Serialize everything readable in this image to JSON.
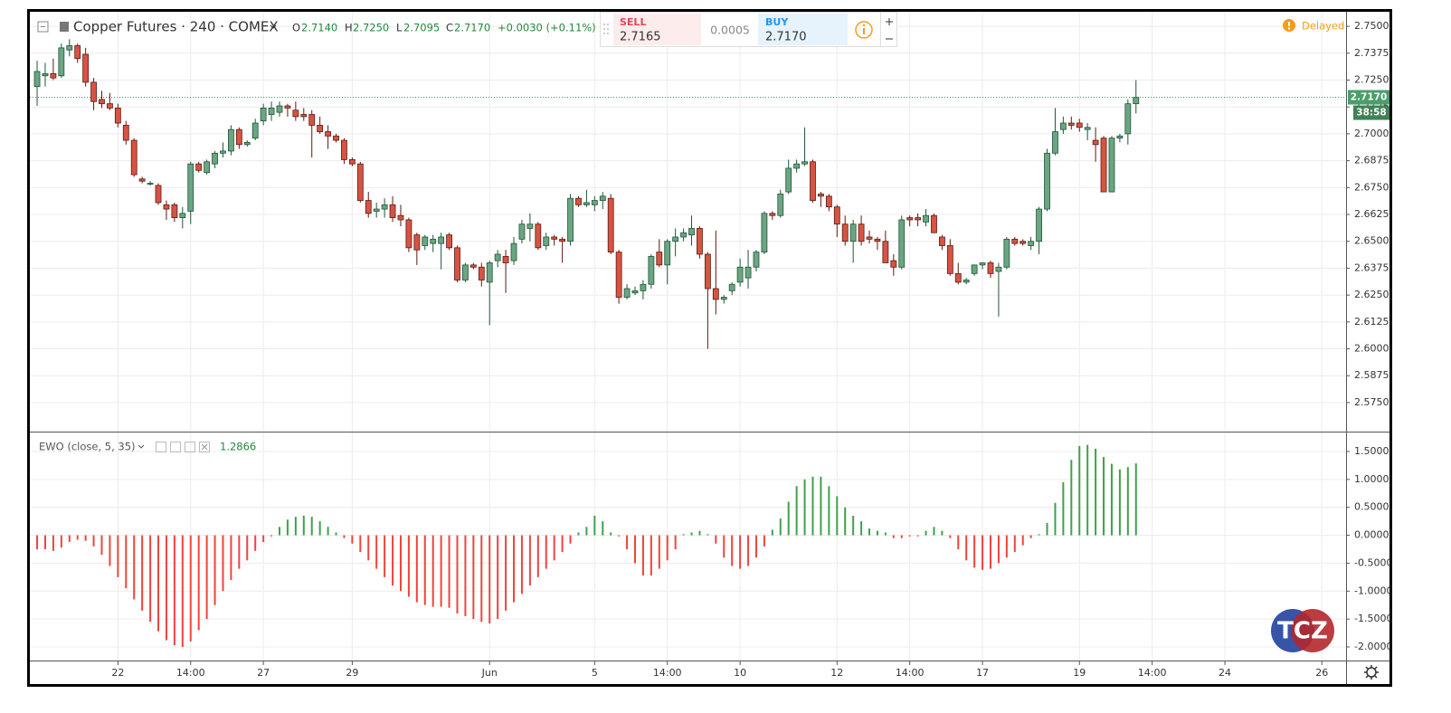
{
  "toolbar": {
    "symbol": "Copper Futures · 240 · COMEX",
    "o_label": "O",
    "o": "2.7140",
    "h_label": "H",
    "h": "2.7250",
    "l_label": "L",
    "l": "2.7095",
    "c_label": "C",
    "c": "2.7170",
    "change": "+0.0030 (+0.11%)",
    "sell_label": "SELL",
    "sell": "2.7165",
    "spread": "0.0005",
    "buy_label": "BUY",
    "buy": "2.7170",
    "status": "Delayed"
  },
  "chart_data": [
    {
      "type": "candlestick",
      "up_color": "#6ba583",
      "down_color": "#d75442",
      "up_border": "#225437",
      "down_border": "#5b1a13",
      "last_label": "2.7170",
      "countdown": "38:58",
      "xlim": [
        -0.9,
        162.0
      ],
      "ylim": [
        2.5615,
        2.7572
      ],
      "yticks": [
        {
          "value": 2.575,
          "label": "2.5750"
        },
        {
          "value": 2.5875,
          "label": "2.5875"
        },
        {
          "value": 2.6,
          "label": "2.6000"
        },
        {
          "value": 2.6125,
          "label": "2.6125"
        },
        {
          "value": 2.625,
          "label": "2.6250"
        },
        {
          "value": 2.6375,
          "label": "2.6375"
        },
        {
          "value": 2.65,
          "label": "2.6500"
        },
        {
          "value": 2.6625,
          "label": "2.6625"
        },
        {
          "value": 2.675,
          "label": "2.6750"
        },
        {
          "value": 2.6875,
          "label": "2.6875"
        },
        {
          "value": 2.7,
          "label": "2.7000"
        },
        {
          "value": 2.7125,
          "label": "2.7125"
        },
        {
          "value": 2.725,
          "label": "2.7250"
        },
        {
          "value": 2.7375,
          "label": "2.7375"
        },
        {
          "value": 2.75,
          "label": "2.7500"
        }
      ],
      "open": [
        2.722,
        2.727,
        2.728,
        2.727,
        2.739,
        2.741,
        2.737,
        2.724,
        2.716,
        2.714,
        2.712,
        2.704,
        2.697,
        2.679,
        2.677,
        2.676,
        2.667,
        2.667,
        2.661,
        2.664,
        2.686,
        2.682,
        2.686,
        2.691,
        2.692,
        2.702,
        2.695,
        2.698,
        2.706,
        2.709,
        2.71,
        2.713,
        2.711,
        2.709,
        2.709,
        2.704,
        2.701,
        2.699,
        2.697,
        2.688,
        2.686,
        2.669,
        2.664,
        2.665,
        2.667,
        2.662,
        2.66,
        2.653,
        2.648,
        2.649,
        2.649,
        2.653,
        2.647,
        2.632,
        2.639,
        2.638,
        2.631,
        2.641,
        2.643,
        2.641,
        2.651,
        2.656,
        2.658,
        2.648,
        2.652,
        2.651,
        2.65,
        2.67,
        2.667,
        2.667,
        2.669,
        2.67,
        2.645,
        2.624,
        2.626,
        2.627,
        2.63,
        2.645,
        2.639,
        2.65,
        2.652,
        2.653,
        2.656,
        2.644,
        2.628,
        2.623,
        2.627,
        2.631,
        2.633,
        2.638,
        2.645,
        2.663,
        2.662,
        2.673,
        2.684,
        2.686,
        2.687,
        2.672,
        2.671,
        2.666,
        2.658,
        2.65,
        2.658,
        2.652,
        2.651,
        2.65,
        2.641,
        2.638,
        2.661,
        2.661,
        2.659,
        2.662,
        2.652,
        2.648,
        2.635,
        2.631,
        2.635,
        2.639,
        2.64,
        2.636,
        2.638,
        2.651,
        2.65,
        2.648,
        2.65,
        2.665,
        2.691,
        2.702,
        2.705,
        2.705,
        2.702,
        2.697,
        2.698,
        2.673,
        2.698,
        2.7,
        2.714
      ],
      "high": [
        2.734,
        2.733,
        2.735,
        2.742,
        2.744,
        2.742,
        2.74,
        2.726,
        2.72,
        2.719,
        2.714,
        2.706,
        2.698,
        2.68,
        2.678,
        2.677,
        2.669,
        2.668,
        2.666,
        2.687,
        2.687,
        2.688,
        2.692,
        2.696,
        2.704,
        2.703,
        2.697,
        2.707,
        2.714,
        2.715,
        2.715,
        2.714,
        2.715,
        2.712,
        2.711,
        2.708,
        2.704,
        2.7,
        2.698,
        2.689,
        2.687,
        2.673,
        2.668,
        2.67,
        2.671,
        2.667,
        2.661,
        2.654,
        2.653,
        2.653,
        2.654,
        2.654,
        2.648,
        2.64,
        2.64,
        2.64,
        2.641,
        2.646,
        2.646,
        2.652,
        2.66,
        2.663,
        2.659,
        2.654,
        2.653,
        2.652,
        2.672,
        2.671,
        2.674,
        2.671,
        2.673,
        2.672,
        2.646,
        2.63,
        2.629,
        2.632,
        2.644,
        2.651,
        2.651,
        2.656,
        2.656,
        2.662,
        2.657,
        2.645,
        2.655,
        2.625,
        2.631,
        2.642,
        2.646,
        2.646,
        2.664,
        2.664,
        2.674,
        2.688,
        2.688,
        2.703,
        2.688,
        2.673,
        2.672,
        2.667,
        2.662,
        2.66,
        2.662,
        2.655,
        2.652,
        2.655,
        2.644,
        2.662,
        2.662,
        2.663,
        2.665,
        2.663,
        2.653,
        2.651,
        2.64,
        2.633,
        2.639,
        2.64,
        2.641,
        2.64,
        2.652,
        2.652,
        2.651,
        2.652,
        2.666,
        2.693,
        2.712,
        2.708,
        2.708,
        2.707,
        2.705,
        2.703,
        2.699,
        2.699,
        2.7,
        2.716,
        2.725
      ],
      "low": [
        2.713,
        2.722,
        2.725,
        2.726,
        2.736,
        2.733,
        2.722,
        2.711,
        2.712,
        2.711,
        2.703,
        2.695,
        2.68,
        2.677,
        2.676,
        2.667,
        2.66,
        2.659,
        2.656,
        2.658,
        2.682,
        2.681,
        2.684,
        2.689,
        2.69,
        2.693,
        2.694,
        2.697,
        2.704,
        2.706,
        2.708,
        2.708,
        2.706,
        2.706,
        2.689,
        2.7,
        2.693,
        2.696,
        2.686,
        2.685,
        2.668,
        2.661,
        2.661,
        2.661,
        2.659,
        2.657,
        2.645,
        2.639,
        2.646,
        2.645,
        2.637,
        2.646,
        2.631,
        2.631,
        2.637,
        2.629,
        2.611,
        2.638,
        2.626,
        2.639,
        2.649,
        2.65,
        2.646,
        2.646,
        2.648,
        2.64,
        2.648,
        2.666,
        2.666,
        2.664,
        2.665,
        2.644,
        2.621,
        2.623,
        2.625,
        2.623,
        2.628,
        2.638,
        2.63,
        2.643,
        2.65,
        2.648,
        2.642,
        2.6,
        2.616,
        2.621,
        2.625,
        2.629,
        2.628,
        2.636,
        2.644,
        2.66,
        2.661,
        2.672,
        2.682,
        2.685,
        2.668,
        2.666,
        2.664,
        2.652,
        2.648,
        2.64,
        2.648,
        2.649,
        2.646,
        2.64,
        2.634,
        2.637,
        2.657,
        2.657,
        2.657,
        2.655,
        2.646,
        2.634,
        2.63,
        2.63,
        2.634,
        2.637,
        2.633,
        2.615,
        2.637,
        2.648,
        2.648,
        2.646,
        2.644,
        2.664,
        2.69,
        2.7,
        2.702,
        2.701,
        2.697,
        2.687,
        2.673,
        2.673,
        2.696,
        2.695,
        2.7095
      ],
      "close": [
        2.729,
        2.728,
        2.726,
        2.74,
        2.741,
        2.735,
        2.724,
        2.715,
        2.714,
        2.712,
        2.705,
        2.697,
        2.681,
        2.678,
        2.677,
        2.668,
        2.665,
        2.661,
        2.663,
        2.686,
        2.683,
        2.687,
        2.691,
        2.692,
        2.702,
        2.695,
        2.696,
        2.705,
        2.712,
        2.712,
        2.713,
        2.712,
        2.708,
        2.708,
        2.704,
        2.701,
        2.699,
        2.697,
        2.688,
        2.686,
        2.669,
        2.663,
        2.665,
        2.667,
        2.661,
        2.66,
        2.647,
        2.646,
        2.652,
        2.651,
        2.652,
        2.647,
        2.632,
        2.639,
        2.638,
        2.632,
        2.64,
        2.644,
        2.64,
        2.649,
        2.658,
        2.658,
        2.647,
        2.652,
        2.651,
        2.65,
        2.67,
        2.667,
        2.668,
        2.669,
        2.671,
        2.645,
        2.624,
        2.628,
        2.627,
        2.63,
        2.643,
        2.639,
        2.65,
        2.652,
        2.654,
        2.656,
        2.644,
        2.628,
        2.623,
        2.624,
        2.63,
        2.638,
        2.638,
        2.645,
        2.663,
        2.662,
        2.672,
        2.684,
        2.686,
        2.687,
        2.669,
        2.671,
        2.666,
        2.658,
        2.65,
        2.658,
        2.65,
        2.651,
        2.65,
        2.64,
        2.638,
        2.66,
        2.66,
        2.66,
        2.662,
        2.654,
        2.648,
        2.635,
        2.631,
        2.632,
        2.639,
        2.64,
        2.635,
        2.638,
        2.651,
        2.649,
        2.649,
        2.65,
        2.665,
        2.691,
        2.701,
        2.705,
        2.704,
        2.703,
        2.703,
        2.695,
        2.673,
        2.698,
        2.699,
        2.714,
        2.717
      ]
    },
    {
      "type": "bar",
      "title": "EWO (close, 5, 35)",
      "current_value": "1.2866",
      "up_color": "#3ca34a",
      "down_color": "#f0443c",
      "xlim": [
        -0.9,
        162.0
      ],
      "ylim": [
        -2.243,
        1.84
      ],
      "yticks": [
        {
          "value": -2,
          "label": "-2.0000"
        },
        {
          "value": -1.5,
          "label": "-1.5000"
        },
        {
          "value": -1,
          "label": "-1.0000"
        },
        {
          "value": -0.5,
          "label": "-0.5000"
        },
        {
          "value": 0,
          "label": "0.0000"
        },
        {
          "value": 0.5,
          "label": "0.5000"
        },
        {
          "value": 1,
          "label": "1.0000"
        },
        {
          "value": 1.5,
          "label": "1.5000"
        }
      ],
      "xticks": [
        {
          "value": 10,
          "label": "22"
        },
        {
          "value": 19,
          "label": "14:00"
        },
        {
          "value": 28,
          "label": "27"
        },
        {
          "value": 39,
          "label": "29"
        },
        {
          "value": 56,
          "label": "Jun"
        },
        {
          "value": 69,
          "label": "5"
        },
        {
          "value": 78,
          "label": "14:00"
        },
        {
          "value": 87,
          "label": "10"
        },
        {
          "value": 99,
          "label": "12"
        },
        {
          "value": 108,
          "label": "14:00"
        },
        {
          "value": 117,
          "label": "17"
        },
        {
          "value": 129,
          "label": "19"
        },
        {
          "value": 138,
          "label": "14:00"
        },
        {
          "value": 147,
          "label": "24"
        },
        {
          "value": 159,
          "label": "26"
        }
      ],
      "values": [
        -0.25,
        -0.25,
        -0.28,
        -0.22,
        -0.12,
        -0.08,
        -0.1,
        -0.2,
        -0.35,
        -0.55,
        -0.75,
        -0.95,
        -1.15,
        -1.35,
        -1.55,
        -1.72,
        -1.88,
        -1.97,
        -2.0,
        -1.9,
        -1.7,
        -1.5,
        -1.25,
        -1.0,
        -0.8,
        -0.6,
        -0.45,
        -0.28,
        -0.12,
        -0.02,
        0.15,
        0.28,
        0.33,
        0.35,
        0.33,
        0.25,
        0.15,
        0.05,
        -0.05,
        -0.15,
        -0.3,
        -0.45,
        -0.6,
        -0.75,
        -0.9,
        -1.0,
        -1.1,
        -1.2,
        -1.25,
        -1.28,
        -1.28,
        -1.3,
        -1.4,
        -1.45,
        -1.5,
        -1.55,
        -1.58,
        -1.5,
        -1.35,
        -1.2,
        -1.05,
        -0.9,
        -0.75,
        -0.6,
        -0.45,
        -0.3,
        -0.15,
        0.05,
        0.15,
        0.35,
        0.25,
        0.05,
        -0.02,
        -0.25,
        -0.5,
        -0.72,
        -0.72,
        -0.6,
        -0.45,
        -0.25,
        0.02,
        0.05,
        0.08,
        0.02,
        -0.15,
        -0.4,
        -0.55,
        -0.6,
        -0.55,
        -0.4,
        -0.2,
        0.1,
        0.3,
        0.6,
        0.88,
        1.0,
        1.05,
        1.05,
        0.88,
        0.7,
        0.5,
        0.35,
        0.25,
        0.12,
        0.08,
        0.05,
        -0.05,
        -0.05,
        -0.02,
        -0.02,
        0.08,
        0.15,
        0.08,
        -0.05,
        -0.25,
        -0.45,
        -0.58,
        -0.62,
        -0.6,
        -0.5,
        -0.4,
        -0.3,
        -0.18,
        -0.05,
        0.02,
        0.22,
        0.58,
        0.95,
        1.35,
        1.6,
        1.62,
        1.55,
        1.4,
        1.28,
        1.18,
        1.22,
        1.2866
      ]
    }
  ],
  "logo": "TCZ"
}
